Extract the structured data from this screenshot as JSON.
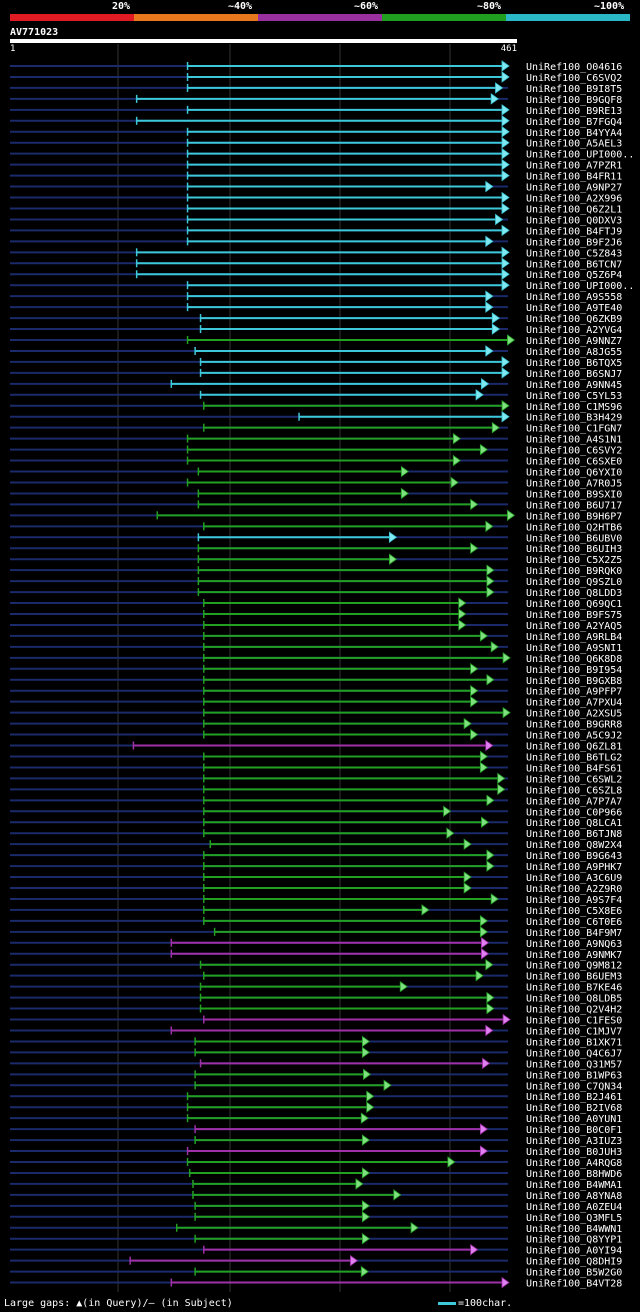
{
  "legend": {
    "labels": [
      "20%",
      "~40%",
      "~60%",
      "~80%",
      "~100%"
    ],
    "colors": [
      "#e01b24",
      "#e8781e",
      "#9a2fa0",
      "#1f9e1f",
      "#2ab8c8"
    ]
  },
  "query": {
    "id": "AV771023",
    "start": "1",
    "end": "461"
  },
  "footer": {
    "gaps_text": "Large gaps: ▲(in Query)/– (in Subject)",
    "scale_text": "=100char."
  },
  "chart_data": {
    "type": "alignment",
    "title": "AV771023",
    "x_range": [
      1,
      461
    ],
    "rows": [
      {
        "name": "UniRef100_O04616",
        "start": 165,
        "end": 461,
        "color": "c"
      },
      {
        "name": "UniRef100_C6SVQ2",
        "start": 165,
        "end": 461,
        "color": "c"
      },
      {
        "name": "UniRef100_B9I8T5",
        "start": 165,
        "end": 455,
        "color": "c"
      },
      {
        "name": "UniRef100_B9GQF8",
        "start": 118,
        "end": 451,
        "color": "c"
      },
      {
        "name": "UniRef100_B9RE13",
        "start": 165,
        "end": 461,
        "color": "c"
      },
      {
        "name": "UniRef100_B7FGQ4",
        "start": 118,
        "end": 461,
        "color": "c"
      },
      {
        "name": "UniRef100_B4YYA4",
        "start": 165,
        "end": 461,
        "color": "c"
      },
      {
        "name": "UniRef100_A5AEL3",
        "start": 165,
        "end": 461,
        "color": "c"
      },
      {
        "name": "UniRef100_UPI000..",
        "start": 165,
        "end": 461,
        "color": "c"
      },
      {
        "name": "UniRef100_A7PZR1",
        "start": 165,
        "end": 461,
        "color": "c"
      },
      {
        "name": "UniRef100_B4FR11",
        "start": 165,
        "end": 461,
        "color": "c"
      },
      {
        "name": "UniRef100_A9NP27",
        "start": 165,
        "end": 446,
        "color": "c"
      },
      {
        "name": "UniRef100_A2X996",
        "start": 165,
        "end": 461,
        "color": "c"
      },
      {
        "name": "UniRef100_Q6Z2L1",
        "start": 165,
        "end": 461,
        "color": "c"
      },
      {
        "name": "UniRef100_Q0DXV3",
        "start": 165,
        "end": 455,
        "color": "c"
      },
      {
        "name": "UniRef100_B4FTJ9",
        "start": 165,
        "end": 461,
        "color": "c"
      },
      {
        "name": "UniRef100_B9F2J6",
        "start": 165,
        "end": 446,
        "color": "c"
      },
      {
        "name": "UniRef100_C5Z843",
        "start": 118,
        "end": 461,
        "color": "c"
      },
      {
        "name": "UniRef100_B6TCN7",
        "start": 118,
        "end": 461,
        "color": "c"
      },
      {
        "name": "UniRef100_Q5Z6P4",
        "start": 118,
        "end": 461,
        "color": "c"
      },
      {
        "name": "UniRef100_UPI000..",
        "start": 165,
        "end": 461,
        "color": "c"
      },
      {
        "name": "UniRef100_A9S558",
        "start": 165,
        "end": 446,
        "color": "c"
      },
      {
        "name": "UniRef100_A9TE40",
        "start": 165,
        "end": 446,
        "color": "c"
      },
      {
        "name": "UniRef100_Q6ZKB9",
        "start": 177,
        "end": 452,
        "color": "c"
      },
      {
        "name": "UniRef100_A2YVG4",
        "start": 177,
        "end": 452,
        "color": "c"
      },
      {
        "name": "UniRef100_A9NNZ7",
        "start": 165,
        "end": 466,
        "color": "g"
      },
      {
        "name": "UniRef100_A8JG55",
        "start": 172,
        "end": 446,
        "color": "c"
      },
      {
        "name": "UniRef100_B6TQX5",
        "start": 177,
        "end": 461,
        "color": "c"
      },
      {
        "name": "UniRef100_B6SNJ7",
        "start": 177,
        "end": 461,
        "color": "c"
      },
      {
        "name": "UniRef100_A9NN45",
        "start": 150,
        "end": 442,
        "color": "c"
      },
      {
        "name": "UniRef100_C5YL53",
        "start": 177,
        "end": 437,
        "color": "c"
      },
      {
        "name": "UniRef100_C1MS96",
        "start": 180,
        "end": 461,
        "color": "g"
      },
      {
        "name": "UniRef100_B3H429",
        "start": 268,
        "end": 461,
        "color": "c"
      },
      {
        "name": "UniRef100_C1FGN7",
        "start": 180,
        "end": 452,
        "color": "g"
      },
      {
        "name": "UniRef100_A4S1N1",
        "start": 165,
        "end": 416,
        "color": "g"
      },
      {
        "name": "UniRef100_C6SVY2",
        "start": 165,
        "end": 441,
        "color": "g"
      },
      {
        "name": "UniRef100_C6SXE0",
        "start": 165,
        "end": 416,
        "color": "g"
      },
      {
        "name": "UniRef100_Q6YXI0",
        "start": 175,
        "end": 368,
        "color": "g"
      },
      {
        "name": "UniRef100_A7R0J5",
        "start": 165,
        "end": 414,
        "color": "g"
      },
      {
        "name": "UniRef100_B9SXI0",
        "start": 175,
        "end": 368,
        "color": "g"
      },
      {
        "name": "UniRef100_B6U717",
        "start": 175,
        "end": 432,
        "color": "g"
      },
      {
        "name": "UniRef100_B9H6P7",
        "start": 137,
        "end": 466,
        "color": "g"
      },
      {
        "name": "UniRef100_Q2HTB6",
        "start": 180,
        "end": 446,
        "color": "g"
      },
      {
        "name": "UniRef100_B6UBV0",
        "start": 175,
        "end": 357,
        "color": "c"
      },
      {
        "name": "UniRef100_B6UIH3",
        "start": 175,
        "end": 432,
        "color": "g"
      },
      {
        "name": "UniRef100_C5X2Z5",
        "start": 175,
        "end": 357,
        "color": "g"
      },
      {
        "name": "UniRef100_B9RQK0",
        "start": 175,
        "end": 447,
        "color": "g"
      },
      {
        "name": "UniRef100_Q9SZL0",
        "start": 175,
        "end": 447,
        "color": "g"
      },
      {
        "name": "UniRef100_Q8LDD3",
        "start": 175,
        "end": 447,
        "color": "g"
      },
      {
        "name": "UniRef100_Q69QC1",
        "start": 180,
        "end": 421,
        "color": "g"
      },
      {
        "name": "UniRef100_B9FS75",
        "start": 180,
        "end": 421,
        "color": "g"
      },
      {
        "name": "UniRef100_A2YAQ5",
        "start": 180,
        "end": 421,
        "color": "g"
      },
      {
        "name": "UniRef100_A9RLB4",
        "start": 180,
        "end": 441,
        "color": "g"
      },
      {
        "name": "UniRef100_A9SNI1",
        "start": 180,
        "end": 451,
        "color": "g"
      },
      {
        "name": "UniRef100_Q6K8D8",
        "start": 180,
        "end": 462,
        "color": "g"
      },
      {
        "name": "UniRef100_B9I954",
        "start": 180,
        "end": 432,
        "color": "g"
      },
      {
        "name": "UniRef100_B9GXB8",
        "start": 180,
        "end": 447,
        "color": "g"
      },
      {
        "name": "UniRef100_A9PFP7",
        "start": 180,
        "end": 432,
        "color": "g"
      },
      {
        "name": "UniRef100_A7PXU4",
        "start": 180,
        "end": 432,
        "color": "g"
      },
      {
        "name": "UniRef100_A2XSU5",
        "start": 180,
        "end": 462,
        "color": "g"
      },
      {
        "name": "UniRef100_B9GRR8",
        "start": 180,
        "end": 426,
        "color": "g"
      },
      {
        "name": "UniRef100_A5C9J2",
        "start": 180,
        "end": 432,
        "color": "g"
      },
      {
        "name": "UniRef100_Q6ZL81",
        "start": 115,
        "end": 446,
        "color": "m"
      },
      {
        "name": "UniRef100_B6TLG2",
        "start": 180,
        "end": 441,
        "color": "g"
      },
      {
        "name": "UniRef100_B4FS61",
        "start": 180,
        "end": 441,
        "color": "g"
      },
      {
        "name": "UniRef100_C6SWL2",
        "start": 180,
        "end": 457,
        "color": "g"
      },
      {
        "name": "UniRef100_C6SZL8",
        "start": 180,
        "end": 457,
        "color": "g"
      },
      {
        "name": "UniRef100_A7P7A7",
        "start": 180,
        "end": 447,
        "color": "g"
      },
      {
        "name": "UniRef100_C0P966",
        "start": 180,
        "end": 407,
        "color": "g"
      },
      {
        "name": "UniRef100_Q8LCA1",
        "start": 180,
        "end": 442,
        "color": "g"
      },
      {
        "name": "UniRef100_B6TJN8",
        "start": 180,
        "end": 410,
        "color": "g"
      },
      {
        "name": "UniRef100_Q8W2X4",
        "start": 186,
        "end": 426,
        "color": "g"
      },
      {
        "name": "UniRef100_B9G643",
        "start": 180,
        "end": 447,
        "color": "g"
      },
      {
        "name": "UniRef100_A9PHK7",
        "start": 180,
        "end": 447,
        "color": "g"
      },
      {
        "name": "UniRef100_A3C6U9",
        "start": 180,
        "end": 426,
        "color": "g"
      },
      {
        "name": "UniRef100_A2Z9R0",
        "start": 180,
        "end": 426,
        "color": "g"
      },
      {
        "name": "UniRef100_A9S7F4",
        "start": 180,
        "end": 451,
        "color": "g"
      },
      {
        "name": "UniRef100_C5X8E6",
        "start": 180,
        "end": 387,
        "color": "g"
      },
      {
        "name": "UniRef100_C6T0E6",
        "start": 180,
        "end": 441,
        "color": "g"
      },
      {
        "name": "UniRef100_B4F9M7",
        "start": 190,
        "end": 441,
        "color": "g"
      },
      {
        "name": "UniRef100_A9NQ63",
        "start": 150,
        "end": 442,
        "color": "m"
      },
      {
        "name": "UniRef100_A9NMK7",
        "start": 150,
        "end": 442,
        "color": "m"
      },
      {
        "name": "UniRef100_Q9M812",
        "start": 177,
        "end": 446,
        "color": "g"
      },
      {
        "name": "UniRef100_B6UEM3",
        "start": 180,
        "end": 437,
        "color": "g"
      },
      {
        "name": "UniRef100_B7KE46",
        "start": 177,
        "end": 367,
        "color": "g"
      },
      {
        "name": "UniRef100_Q8LDB5",
        "start": 177,
        "end": 447,
        "color": "g"
      },
      {
        "name": "UniRef100_Q2V4H2",
        "start": 177,
        "end": 447,
        "color": "g"
      },
      {
        "name": "UniRef100_C1FES0",
        "start": 180,
        "end": 462,
        "color": "m"
      },
      {
        "name": "UniRef100_C1MJV7",
        "start": 150,
        "end": 446,
        "color": "m"
      },
      {
        "name": "UniRef100_B1XK71",
        "start": 172,
        "end": 332,
        "color": "g"
      },
      {
        "name": "UniRef100_Q4C6J7",
        "start": 172,
        "end": 332,
        "color": "g"
      },
      {
        "name": "UniRef100_Q31M57",
        "start": 177,
        "end": 443,
        "color": "m"
      },
      {
        "name": "UniRef100_B1WP63",
        "start": 172,
        "end": 333,
        "color": "g"
      },
      {
        "name": "UniRef100_C7QN34",
        "start": 172,
        "end": 352,
        "color": "g"
      },
      {
        "name": "UniRef100_B2J461",
        "start": 165,
        "end": 336,
        "color": "g"
      },
      {
        "name": "UniRef100_B2IV68",
        "start": 165,
        "end": 336,
        "color": "g"
      },
      {
        "name": "UniRef100_A0YUN1",
        "start": 165,
        "end": 331,
        "color": "g"
      },
      {
        "name": "UniRef100_B0C0F1",
        "start": 172,
        "end": 441,
        "color": "m"
      },
      {
        "name": "UniRef100_A3IUZ3",
        "start": 172,
        "end": 332,
        "color": "g"
      },
      {
        "name": "UniRef100_B0JUH3",
        "start": 165,
        "end": 441,
        "color": "m"
      },
      {
        "name": "UniRef100_A4RQG8",
        "start": 165,
        "end": 411,
        "color": "g"
      },
      {
        "name": "UniRef100_B8HWD6",
        "start": 167,
        "end": 332,
        "color": "g"
      },
      {
        "name": "UniRef100_B4WMA1",
        "start": 170,
        "end": 326,
        "color": "g"
      },
      {
        "name": "UniRef100_A8YNA8",
        "start": 170,
        "end": 361,
        "color": "g"
      },
      {
        "name": "UniRef100_A0ZEU4",
        "start": 172,
        "end": 332,
        "color": "g"
      },
      {
        "name": "UniRef100_Q3MFL5",
        "start": 172,
        "end": 332,
        "color": "g"
      },
      {
        "name": "UniRef100_B4WWN1",
        "start": 155,
        "end": 377,
        "color": "g"
      },
      {
        "name": "UniRef100_Q8YYP1",
        "start": 172,
        "end": 332,
        "color": "g"
      },
      {
        "name": "UniRef100_A0YI94",
        "start": 180,
        "end": 432,
        "color": "m"
      },
      {
        "name": "UniRef100_Q8DHI9",
        "start": 112,
        "end": 321,
        "color": "m"
      },
      {
        "name": "UniRef100_B5W2G0",
        "start": 172,
        "end": 331,
        "color": "g"
      },
      {
        "name": "UniRef100_B4VT28",
        "start": 150,
        "end": 461,
        "color": "m"
      }
    ]
  }
}
